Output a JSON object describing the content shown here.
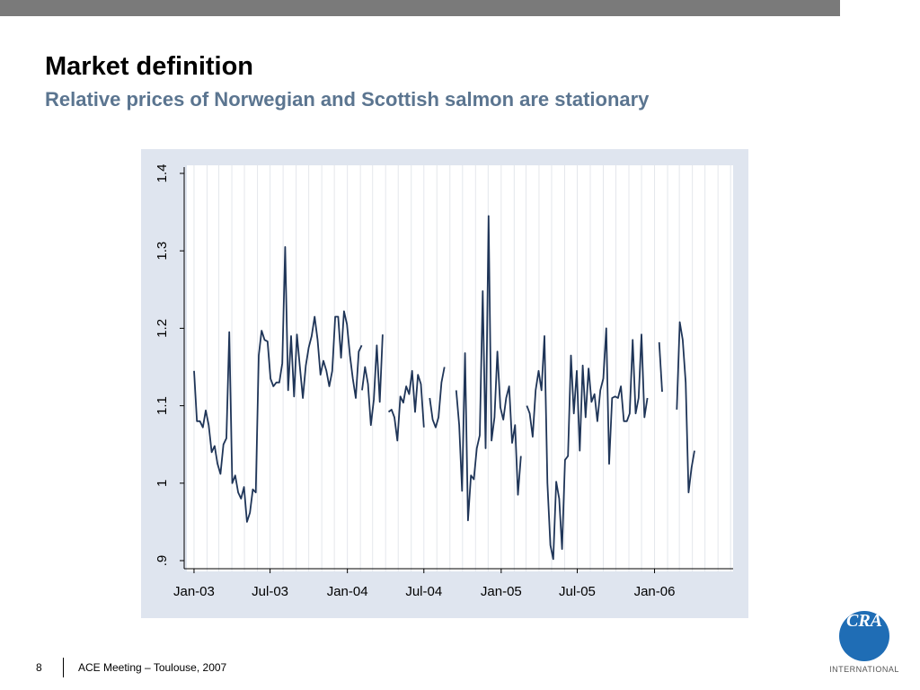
{
  "header": {
    "title": "Market definition",
    "subtitle": "Relative prices of Norwegian and Scottish salmon are stationary"
  },
  "footer": {
    "page_number": "8",
    "text": "ACE Meeting – Toulouse, 2007"
  },
  "logo": {
    "mark": "CRA",
    "text": "INTERNATIONAL"
  },
  "colors": {
    "top_bar": "#7a7a7a",
    "subtitle": "#5b7590",
    "panel_background": "#dfe5ef",
    "line": "#1f3558",
    "logo": "#1f6db5"
  },
  "chart_data": {
    "type": "line",
    "title": "",
    "xlabel": "",
    "ylabel": "",
    "ylim": [
      0.9,
      1.4
    ],
    "xlim": [
      "2002-12-15",
      "2006-07-07"
    ],
    "grid": "vertical",
    "y_ticks": [
      ".9",
      "1",
      "1.1",
      "1.2",
      "1.3",
      "1.4"
    ],
    "y_tick_values": [
      0.9,
      1.0,
      1.1,
      1.2,
      1.3,
      1.4
    ],
    "x_ticks": [
      "Jan-03",
      "Jul-03",
      "Jan-04",
      "Jul-04",
      "Jan-05",
      "Jul-05",
      "Jan-06"
    ],
    "x_tick_dates": [
      "2003-01-01",
      "2003-07-01",
      "2004-01-01",
      "2004-07-01",
      "2005-01-01",
      "2005-07-01",
      "2006-01-01"
    ],
    "series": [
      {
        "name": "",
        "segments": [
          {
            "start": "2003-01-01",
            "values": [
              1.145,
              1.08,
              1.08,
              1.072,
              1.094,
              1.075,
              1.04,
              1.048,
              1.025,
              1.012,
              1.05,
              1.058,
              1.195,
              1.0,
              1.01,
              0.988,
              0.98,
              0.995,
              0.95,
              0.962,
              0.992,
              0.988,
              1.165,
              1.197,
              1.185,
              1.183,
              1.135,
              1.125,
              1.13,
              1.13,
              1.155,
              1.305,
              1.12,
              1.19,
              1.112,
              1.192,
              1.15,
              1.11,
              1.152,
              1.175,
              1.19,
              1.215,
              1.185,
              1.14,
              1.158,
              1.145,
              1.125,
              1.145,
              1.215,
              1.215,
              1.162,
              1.222,
              1.205,
              1.165,
              1.135,
              1.11,
              1.17,
              1.178
            ]
          },
          {
            "start": "2004-02-05",
            "values": [
              1.12,
              1.15,
              1.128,
              1.075,
              1.108,
              1.178,
              1.105,
              1.192
            ]
          },
          {
            "start": "2004-04-08",
            "values": [
              1.092,
              1.095,
              1.085,
              1.055,
              1.112,
              1.104,
              1.125,
              1.115,
              1.145,
              1.092,
              1.14,
              1.128,
              1.072
            ]
          },
          {
            "start": "2004-07-15",
            "values": [
              1.11,
              1.082,
              1.072,
              1.085,
              1.13,
              1.15
            ]
          },
          {
            "start": "2004-09-16",
            "values": [
              1.12,
              1.075,
              0.99,
              1.168,
              0.952,
              1.01,
              1.005,
              1.045,
              1.062,
              1.248,
              1.045,
              1.345,
              1.055,
              1.085,
              1.17,
              1.098,
              1.082,
              1.11,
              1.125,
              1.052,
              1.075,
              0.985,
              1.035
            ]
          },
          {
            "start": "2005-03-03",
            "values": [
              1.1,
              1.09,
              1.06,
              1.12,
              1.145,
              1.12,
              1.19,
              1.0,
              0.92,
              0.902,
              1.002,
              0.98,
              0.915,
              1.03,
              1.035,
              1.165,
              1.09,
              1.145,
              1.042,
              1.152,
              1.085,
              1.148,
              1.105,
              1.115,
              1.08,
              1.12,
              1.135,
              1.2,
              1.025,
              1.11,
              1.112,
              1.11,
              1.125,
              1.08,
              1.08,
              1.09,
              1.185,
              1.09,
              1.11,
              1.192,
              1.085,
              1.11
            ]
          },
          {
            "start": "2006-01-12",
            "values": [
              1.182,
              1.118
            ]
          },
          {
            "start": "2006-02-23",
            "values": [
              1.095,
              1.208,
              1.185,
              1.13,
              0.988,
              1.02,
              1.042
            ]
          }
        ]
      }
    ]
  }
}
